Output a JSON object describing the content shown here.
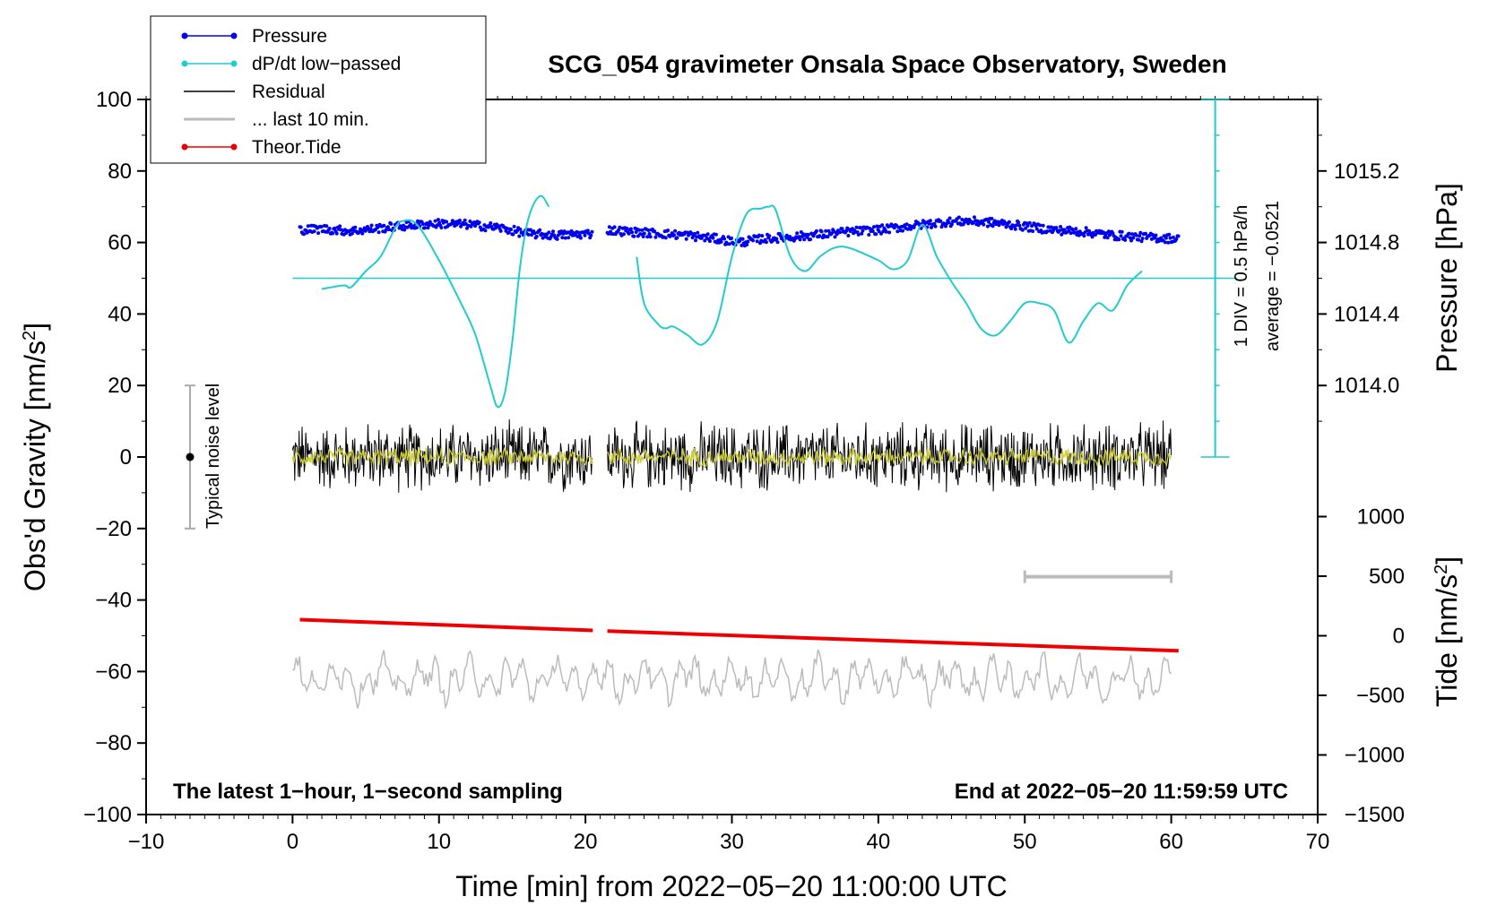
{
  "chart_data": {
    "type": "line",
    "title": "SCG_054 gravimeter Onsala Space Observatory, Sweden",
    "xlabel": "Time [min] from 2022−05−20 11:00:00 UTC",
    "ylabel_left_main": "Obs'd Gravity [nm/s",
    "ylabel_left_sup": "2",
    "ylabel_left_close": "]",
    "ylabel_right_pressure": "Pressure [hPa]",
    "ylabel_right_tide_main": "Tide [nm/s",
    "ylabel_right_tide_sup": "2",
    "ylabel_right_tide_close": "]",
    "xlim": [
      -10,
      70
    ],
    "ylim": [
      -100,
      100
    ],
    "x_ticks": [
      -10,
      0,
      10,
      20,
      30,
      40,
      50,
      60,
      70
    ],
    "x_tick_labels": [
      "−10",
      "0",
      "10",
      "20",
      "30",
      "40",
      "50",
      "60",
      "70"
    ],
    "y_ticks": [
      100,
      80,
      60,
      40,
      20,
      0,
      -20,
      -40,
      -60,
      -80,
      -100
    ],
    "y_tick_labels": [
      "100",
      "80",
      "60",
      "40",
      "20",
      "0",
      "−20",
      "−40",
      "−60",
      "−80",
      "−100"
    ],
    "pressure_ticks": [
      {
        "label": "1015.2",
        "y": 80
      },
      {
        "label": "1014.8",
        "y": 60
      },
      {
        "label": "1014.4",
        "y": 40
      },
      {
        "label": "1014.0",
        "y": 20
      }
    ],
    "tide_ticks": [
      {
        "label": "1000",
        "y": -16.67
      },
      {
        "label": "500",
        "y": -33.33
      },
      {
        "label": "0",
        "y": -50
      },
      {
        "label": "−500",
        "y": -66.67
      },
      {
        "label": "−1000",
        "y": -83.33
      },
      {
        "label": "−1500",
        "y": -100
      }
    ],
    "legend": [
      {
        "label": "Pressure",
        "color": "#0000ee",
        "marker": true
      },
      {
        "label": "dP/dt low−passed",
        "color": "#22cccc",
        "marker": true
      },
      {
        "label": "Residual",
        "color": "#000000",
        "marker": false
      },
      {
        "label": "... last 10 min.",
        "color": "#bbbbbb",
        "marker": false
      },
      {
        "label": "Theor.Tide",
        "color": "#ee0000",
        "marker": true
      }
    ],
    "series": [
      {
        "name": "Pressure",
        "color": "#0000ee",
        "style": "dots",
        "segments": [
          {
            "x": [
              0.5,
              2,
              4,
              6,
              8,
              10,
              12,
              14,
              16,
              18,
              20.5
            ],
            "y": [
              63.5,
              63.8,
              63.2,
              64,
              64.8,
              65.3,
              65,
              64.2,
              62.5,
              62,
              62.5
            ]
          },
          {
            "x": [
              21.5,
              23,
              25,
              27,
              29,
              30.5,
              32,
              34,
              36,
              38,
              40,
              42,
              44,
              46,
              48,
              50,
              52,
              54,
              56,
              58,
              60.5
            ],
            "y": [
              63.5,
              63,
              62.5,
              62,
              61,
              60,
              61,
              61.5,
              62.2,
              63,
              63.5,
              64.5,
              65.5,
              66,
              65.5,
              64.5,
              63.5,
              63,
              62,
              61.5,
              61
            ]
          }
        ]
      },
      {
        "name": "dP/dt low-passed",
        "color": "#22cccc",
        "style": "line",
        "segments": [
          {
            "x": [
              2,
              3.5,
              4,
              5,
              6,
              7,
              7.5,
              8.5,
              10,
              11.5,
              12.5,
              13.5,
              14,
              14.5,
              15,
              15.5,
              16,
              16.5,
              17,
              17.5
            ],
            "y": [
              47,
              48,
              47.5,
              52,
              56,
              64,
              66,
              65,
              55,
              43,
              34,
              20,
              14,
              18,
              32,
              52,
              65,
              71,
              73,
              70
            ]
          },
          {
            "x": [
              23.5,
              24,
              25,
              25.5,
              26,
              27,
              28,
              29,
              30,
              31,
              32,
              32.5,
              33,
              34,
              35,
              36,
              37,
              38,
              40,
              41,
              42,
              43,
              44,
              45,
              46,
              47,
              48,
              49,
              50,
              51,
              52,
              53,
              54,
              55,
              56,
              57,
              58
            ],
            "y": [
              56,
              43,
              37,
              36,
              36.5,
              34,
              31.5,
              38,
              56,
              68,
              69.5,
              70,
              69,
              56,
              52,
              56,
              58.5,
              58.5,
              55,
              52.5,
              55,
              65,
              56,
              49,
              43,
              36,
              34,
              38,
              43,
              43,
              41,
              32,
              38,
              43,
              41,
              48,
              52
            ]
          }
        ]
      },
      {
        "name": "Theor.Tide",
        "color": "#ee0000",
        "style": "line",
        "segments": [
          {
            "x": [
              0.5,
              20.5
            ],
            "y": [
              -45.5,
              -48.5
            ]
          },
          {
            "x": [
              21.5,
              60.5
            ],
            "y": [
              -48.7,
              -54.2
            ]
          }
        ]
      }
    ],
    "residual": {
      "color": "#000000",
      "overlay_color": "#cccc33",
      "center": 0,
      "amplitude_range": [
        -15,
        14
      ],
      "gap": [
        20.5,
        21.5
      ],
      "x_range": [
        0,
        60
      ]
    },
    "last_10_min": {
      "color": "#bbbbbb",
      "center": -62,
      "amplitude_range": [
        -70,
        -53
      ],
      "x_range": [
        0,
        60
      ],
      "bar_x": [
        50,
        60
      ],
      "bar_y": -33.5
    },
    "dpdt_zero_line": {
      "y": 50,
      "x_range": [
        0,
        64.5
      ],
      "color": "#22cccc"
    },
    "dpdt_scale": {
      "x": 63,
      "y_range": [
        0,
        100
      ],
      "ticks_every": 10,
      "label": "1 DIV = 0.5 hPa/h",
      "average": "average = −0.0521"
    },
    "noise_bar": {
      "x": -7,
      "y_range": [
        -20,
        20
      ],
      "center": 0,
      "label": "Typical noise level"
    },
    "annotation_left": "The latest 1−hour, 1−second sampling",
    "annotation_right": "End at 2022−05−20 11:59:59 UTC"
  }
}
